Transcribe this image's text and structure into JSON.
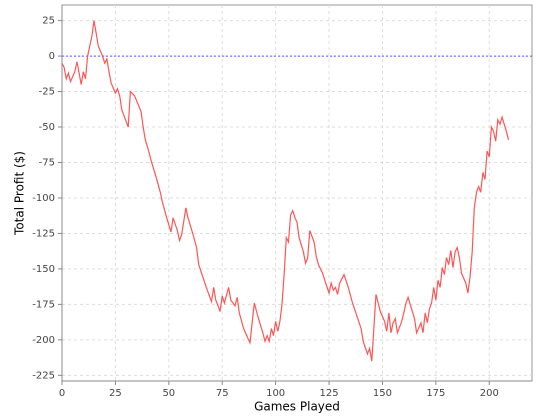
{
  "chart_data": {
    "type": "line",
    "x_label": "Games Played",
    "y_label": "Total Profit ($)",
    "x": [
      0,
      1,
      2,
      3,
      4,
      6,
      7,
      8,
      9,
      10,
      11,
      12,
      14,
      15,
      16,
      17,
      19,
      20,
      21,
      22,
      23,
      25,
      26,
      27,
      28,
      30,
      31,
      32,
      34,
      37,
      38,
      39,
      40,
      42,
      44,
      46,
      47,
      49,
      51,
      52,
      54,
      55,
      56,
      58,
      59,
      61,
      63,
      64,
      66,
      68,
      70,
      71,
      72,
      74,
      75,
      76,
      78,
      79,
      81,
      82,
      83,
      85,
      87,
      88,
      90,
      92,
      94,
      95,
      96,
      97,
      98,
      99,
      100,
      101,
      102,
      103,
      104,
      105,
      106,
      107,
      108,
      109,
      110,
      111,
      113,
      114,
      115,
      116,
      118,
      119,
      120,
      122,
      123,
      125,
      126,
      127,
      128,
      129,
      130,
      132,
      134,
      136,
      138,
      140,
      141,
      143,
      144,
      145,
      147,
      148,
      149,
      151,
      152,
      153,
      154,
      155,
      156,
      157,
      159,
      160,
      161,
      162,
      163,
      165,
      166,
      168,
      169,
      170,
      171,
      172,
      173,
      174,
      175,
      176,
      177,
      178,
      179,
      180,
      181,
      182,
      183,
      184,
      185,
      186,
      187,
      189,
      190,
      191,
      192,
      193,
      194,
      195,
      196,
      197,
      198,
      199,
      200,
      201,
      202,
      203,
      204,
      205,
      206,
      207,
      208,
      209
    ],
    "series": [
      {
        "color": "#ff5555",
        "values": [
          -5,
          -8,
          -16,
          -12,
          -18,
          -11,
          -4,
          -12,
          -20,
          -11,
          -16,
          0,
          14,
          25,
          16,
          7,
          0,
          -5,
          -2,
          -11,
          -19,
          -26,
          -23,
          -28,
          -38,
          -46,
          -50,
          -25,
          -28,
          -39,
          -50,
          -59,
          -64,
          -75,
          -85,
          -96,
          -103,
          -114,
          -124,
          -114,
          -123,
          -130,
          -126,
          -107,
          -114,
          -124,
          -135,
          -147,
          -156,
          -165,
          -173,
          -163,
          -172,
          -180,
          -169,
          -174,
          -163,
          -172,
          -176,
          -170,
          -181,
          -192,
          -199,
          -202,
          -174,
          -185,
          -195,
          -201,
          -197,
          -201,
          -192,
          -197,
          -187,
          -194,
          -187,
          -175,
          -153,
          -128,
          -131,
          -112,
          -109,
          -114,
          -117,
          -128,
          -138,
          -146,
          -142,
          -123,
          -131,
          -141,
          -147,
          -153,
          -158,
          -167,
          -160,
          -165,
          -163,
          -168,
          -160,
          -154,
          -163,
          -174,
          -183,
          -192,
          -201,
          -210,
          -206,
          -215,
          -168,
          -174,
          -180,
          -187,
          -194,
          -181,
          -195,
          -188,
          -185,
          -195,
          -187,
          -181,
          -174,
          -170,
          -175,
          -185,
          -195,
          -188,
          -195,
          -181,
          -188,
          -178,
          -174,
          -163,
          -172,
          -158,
          -163,
          -149,
          -154,
          -142,
          -147,
          -137,
          -149,
          -138,
          -135,
          -142,
          -153,
          -160,
          -167,
          -156,
          -138,
          -107,
          -96,
          -92,
          -96,
          -82,
          -87,
          -67,
          -71,
          -50,
          -53,
          -60,
          -45,
          -48,
          -43,
          -48,
          -53,
          -59
        ]
      }
    ],
    "xlim": [
      0,
      220
    ],
    "xticks": [
      0,
      25,
      50,
      75,
      100,
      125,
      150,
      175,
      200
    ],
    "ylim": [
      -229,
      36
    ],
    "yticks": [
      25,
      0,
      -25,
      -50,
      -75,
      -100,
      -125,
      -150,
      -175,
      -200,
      -225
    ],
    "grid": true,
    "zero_line": true,
    "zero_line_color": "#5555ff"
  }
}
